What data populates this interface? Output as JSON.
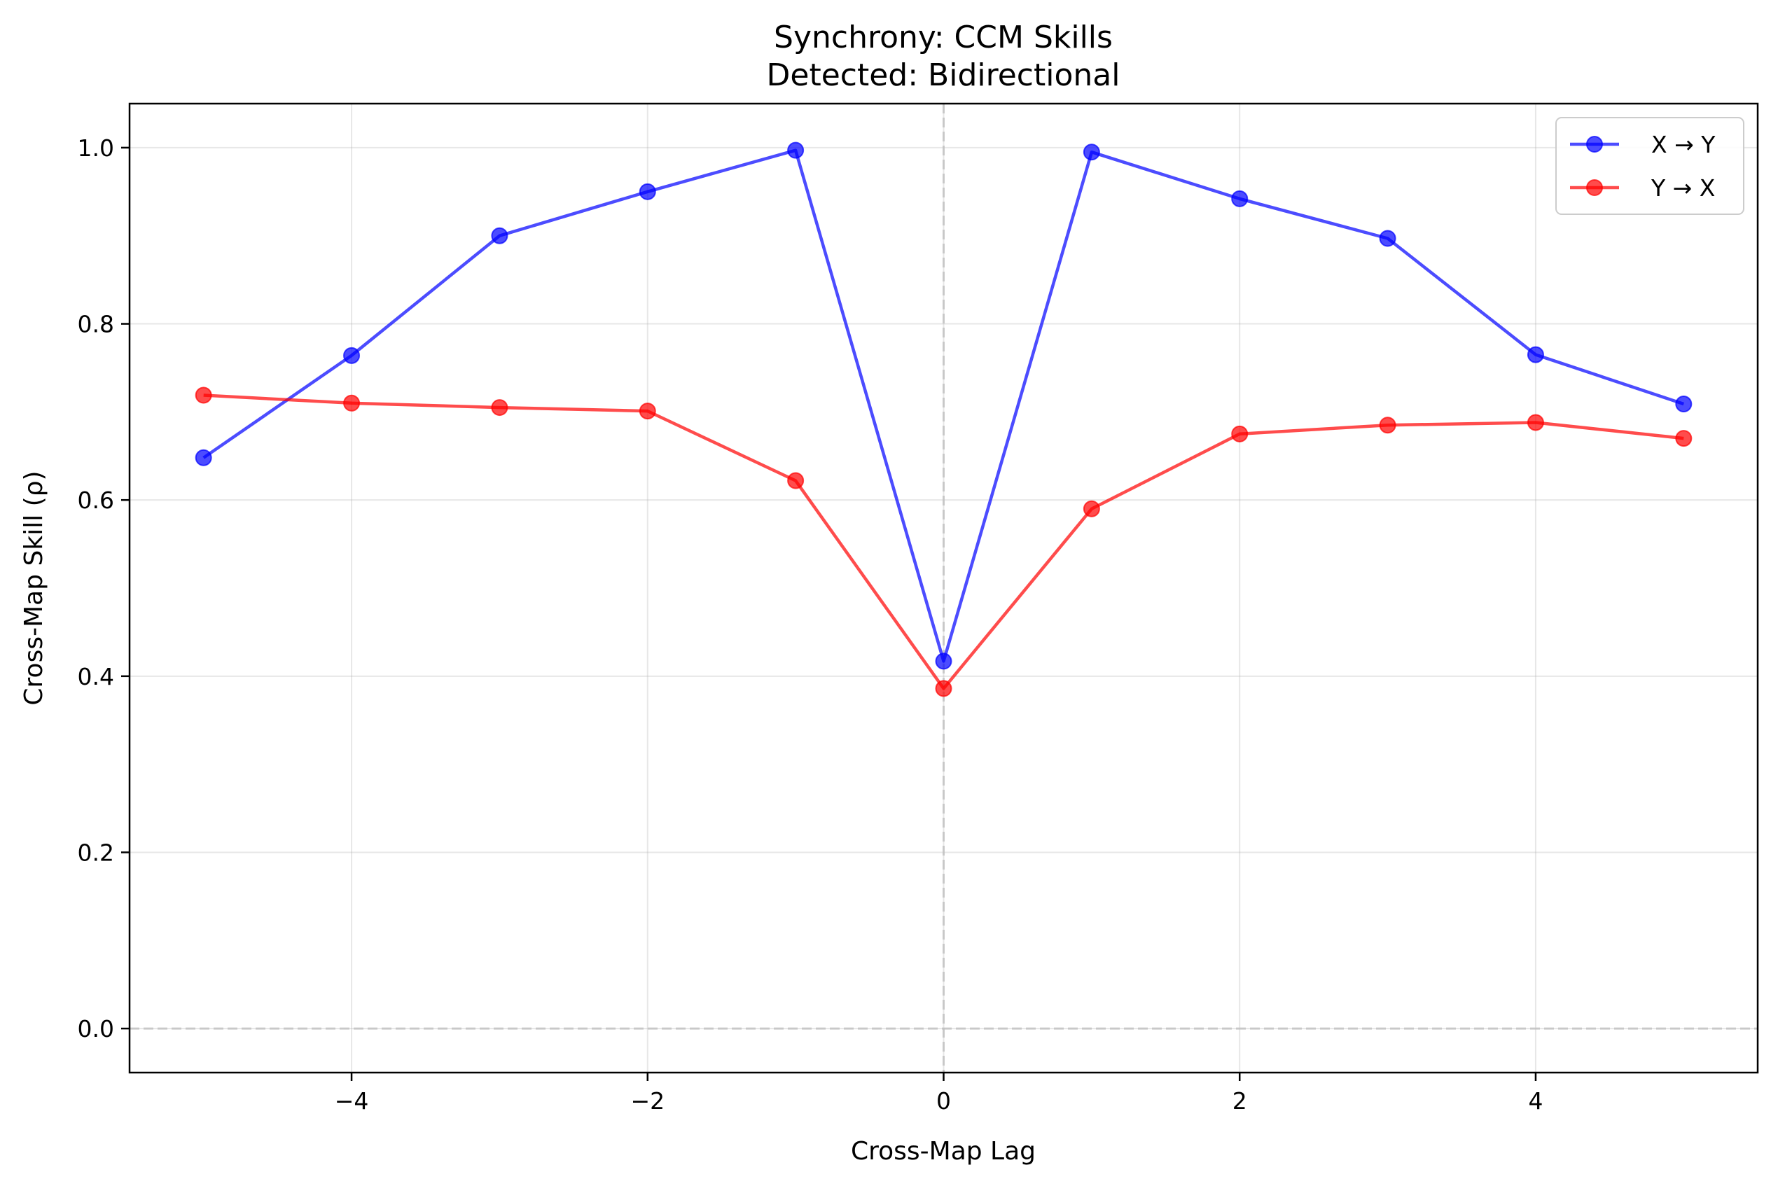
{
  "chart_data": {
    "type": "line",
    "title": "Synchrony: CCM Skills",
    "subtitle": "Detected: Bidirectional",
    "xlabel": "Cross-Map Lag",
    "ylabel": "Cross-Map Skill (ρ)",
    "xlim": [
      -5.5,
      5.5
    ],
    "ylim": [
      -0.05,
      1.05
    ],
    "xticks": [
      -4,
      -2,
      0,
      2,
      4
    ],
    "xtick_labels": [
      "−4",
      "−2",
      "0",
      "2",
      "4"
    ],
    "yticks": [
      0.0,
      0.2,
      0.4,
      0.6,
      0.8,
      1.0
    ],
    "ytick_labels": [
      "0.0",
      "0.2",
      "0.4",
      "0.6",
      "0.8",
      "1.0"
    ],
    "grid": true,
    "legend_position": "top-right",
    "reference_lines": [
      {
        "axis": "x",
        "value": 0,
        "style": "dashed",
        "color": "#c0c0c0"
      },
      {
        "axis": "y",
        "value": 0,
        "style": "dashed",
        "color": "#c0c0c0"
      }
    ],
    "x": [
      -5,
      -4,
      -3,
      -2,
      -1,
      0,
      1,
      2,
      3,
      4,
      5
    ],
    "series": [
      {
        "name": "X → Y",
        "color": "#0000ff",
        "values": [
          0.648,
          0.764,
          0.9,
          0.95,
          0.997,
          0.417,
          0.995,
          0.942,
          0.897,
          0.765,
          0.709
        ]
      },
      {
        "name": "Y → X",
        "color": "#ff0000",
        "values": [
          0.719,
          0.71,
          0.705,
          0.701,
          0.622,
          0.386,
          0.59,
          0.675,
          0.685,
          0.688,
          0.67
        ]
      }
    ]
  }
}
